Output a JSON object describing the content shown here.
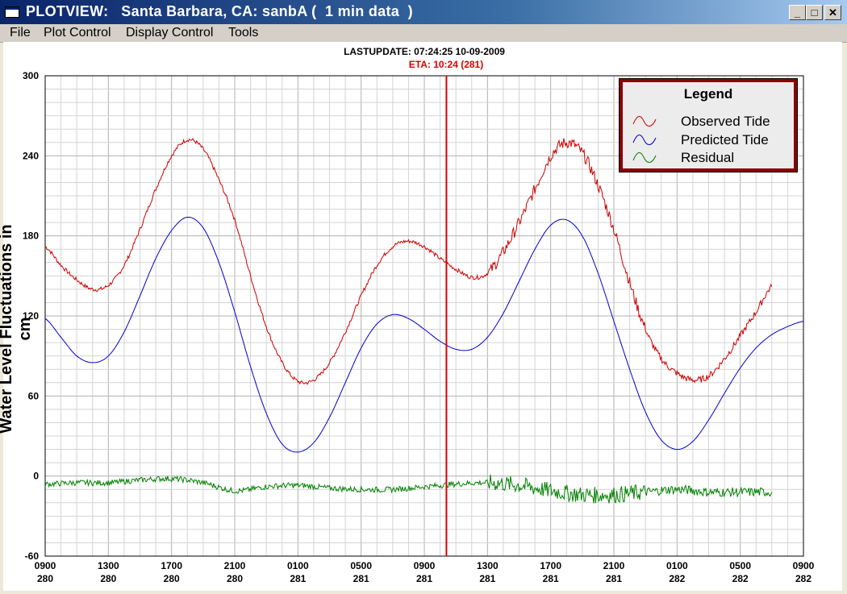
{
  "window": {
    "title": "PLOTVIEW:   Santa Barbara, CA: sanbA (  1 min data  )",
    "minimize_label": "_",
    "maximize_label": "□",
    "close_label": "✕"
  },
  "menu": {
    "items": [
      "File",
      "Plot Control",
      "Display Control",
      "Tools"
    ]
  },
  "plot_header": {
    "last_update": "LASTUPDATE: 07:24:25  10-09-2009",
    "eta": "ETA: 10:24 (281)"
  },
  "colors": {
    "observed": "#cc0000",
    "predicted": "#0000cc",
    "residual": "#008000",
    "eta_line": "#dd0000",
    "legend_border": "#8b0000"
  },
  "legend": {
    "title": "Legend",
    "items": [
      {
        "label": "Observed Tide",
        "icon": "red-wave-icon",
        "color": "#cc0000"
      },
      {
        "label": "Predicted Tide",
        "icon": "blue-wave-icon",
        "color": "#0000cc"
      },
      {
        "label": "Residual",
        "icon": "green-wave-icon",
        "color": "#008000"
      }
    ]
  },
  "chart_data": {
    "type": "line",
    "title": "",
    "ylabel": "Water Level Fluctuations in cm",
    "xlabel": "",
    "ylim": [
      -60,
      300
    ],
    "yticks": [
      -60,
      0,
      60,
      120,
      180,
      240,
      300
    ],
    "xlim": [
      0,
      48
    ],
    "xtick_labels": [
      {
        "time": "0900",
        "day": "280"
      },
      {
        "time": "1300",
        "day": "280"
      },
      {
        "time": "1700",
        "day": "280"
      },
      {
        "time": "2100",
        "day": "280"
      },
      {
        "time": "0100",
        "day": "281"
      },
      {
        "time": "0500",
        "day": "281"
      },
      {
        "time": "0900",
        "day": "281"
      },
      {
        "time": "1300",
        "day": "281"
      },
      {
        "time": "1700",
        "day": "281"
      },
      {
        "time": "2100",
        "day": "281"
      },
      {
        "time": "0100",
        "day": "282"
      },
      {
        "time": "0500",
        "day": "282"
      },
      {
        "time": "0900",
        "day": "282"
      }
    ],
    "eta_hours": 25.4,
    "grid": true,
    "series": [
      {
        "name": "Observed Tide",
        "color": "#cc0000",
        "x": [
          0,
          1,
          2,
          3,
          4,
          5,
          6,
          7,
          8,
          9,
          10,
          11,
          12,
          13,
          14,
          15,
          16,
          17,
          18,
          19,
          20,
          21,
          22,
          23,
          24,
          25,
          26,
          27,
          28,
          29,
          30,
          31,
          32,
          33,
          34,
          35,
          36,
          37,
          38,
          39,
          40,
          41,
          42,
          43,
          44,
          45,
          46
        ],
        "y": [
          172,
          158,
          147,
          140,
          143,
          158,
          185,
          215,
          240,
          252,
          245,
          222,
          192,
          150,
          112,
          85,
          71,
          72,
          85,
          108,
          135,
          158,
          172,
          176,
          172,
          163,
          155,
          149,
          152,
          168,
          190,
          215,
          240,
          250,
          242,
          218,
          185,
          145,
          110,
          88,
          77,
          72,
          75,
          88,
          105,
          123,
          142
        ]
      },
      {
        "name": "Predicted Tide",
        "color": "#0000cc",
        "x": [
          0,
          1,
          2,
          3,
          4,
          5,
          6,
          7,
          8,
          9,
          10,
          11,
          12,
          13,
          14,
          15,
          16,
          17,
          18,
          19,
          20,
          21,
          22,
          23,
          24,
          25,
          26,
          27,
          28,
          29,
          30,
          31,
          32,
          33,
          34,
          35,
          36,
          37,
          38,
          39,
          40,
          41,
          42,
          43,
          44,
          45,
          46,
          47,
          48
        ],
        "y": [
          118,
          104,
          90,
          85,
          90,
          108,
          135,
          163,
          184,
          194,
          186,
          160,
          123,
          82,
          47,
          24,
          18,
          25,
          44,
          70,
          96,
          114,
          121,
          118,
          110,
          101,
          95,
          95,
          104,
          122,
          146,
          170,
          188,
          192,
          180,
          152,
          116,
          80,
          48,
          27,
          20,
          26,
          42,
          62,
          81,
          96,
          106,
          112,
          116
        ]
      },
      {
        "name": "Residual",
        "color": "#008000",
        "x": [
          0,
          2,
          4,
          6,
          8,
          10,
          12,
          14,
          16,
          18,
          20,
          22,
          24,
          26,
          28,
          30,
          32,
          34,
          36,
          38,
          40,
          42,
          44,
          46
        ],
        "y": [
          -6,
          -5,
          -5,
          -3,
          -2,
          -5,
          -11,
          -8,
          -7,
          -9,
          -10,
          -10,
          -8,
          -6,
          -5,
          -7,
          -11,
          -14,
          -14,
          -12,
          -10,
          -12,
          -12,
          -12
        ]
      }
    ]
  }
}
